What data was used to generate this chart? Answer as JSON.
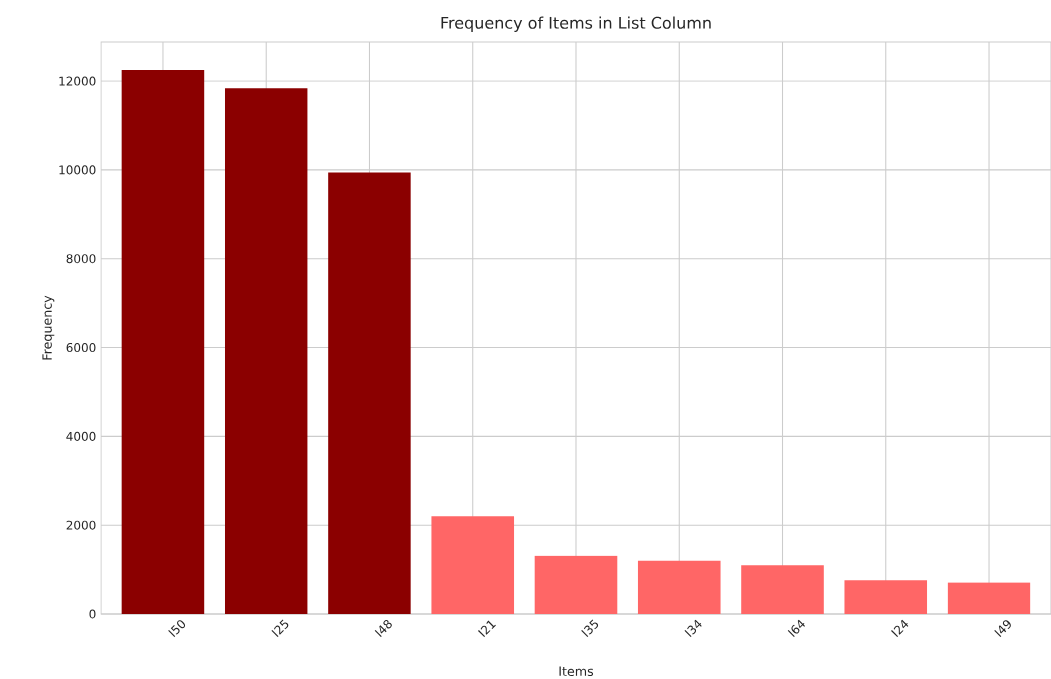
{
  "chart_data": {
    "type": "bar",
    "title": "Frequency of Items in List Column",
    "xlabel": "Items",
    "ylabel": "Frequency",
    "categories": [
      "I50",
      "I25",
      "I48",
      "I21",
      "I35",
      "I34",
      "I64",
      "I24",
      "I49"
    ],
    "values": [
      12250,
      11840,
      9940,
      2200,
      1310,
      1200,
      1100,
      760,
      710
    ],
    "colors": [
      "#8b0000",
      "#8b0000",
      "#8b0000",
      "#ff6666",
      "#ff6666",
      "#ff6666",
      "#ff6666",
      "#ff6666",
      "#ff6666"
    ],
    "ylim": [
      0,
      12880
    ],
    "yticks": [
      0,
      2000,
      4000,
      6000,
      8000,
      10000,
      12000
    ],
    "grid": true
  }
}
